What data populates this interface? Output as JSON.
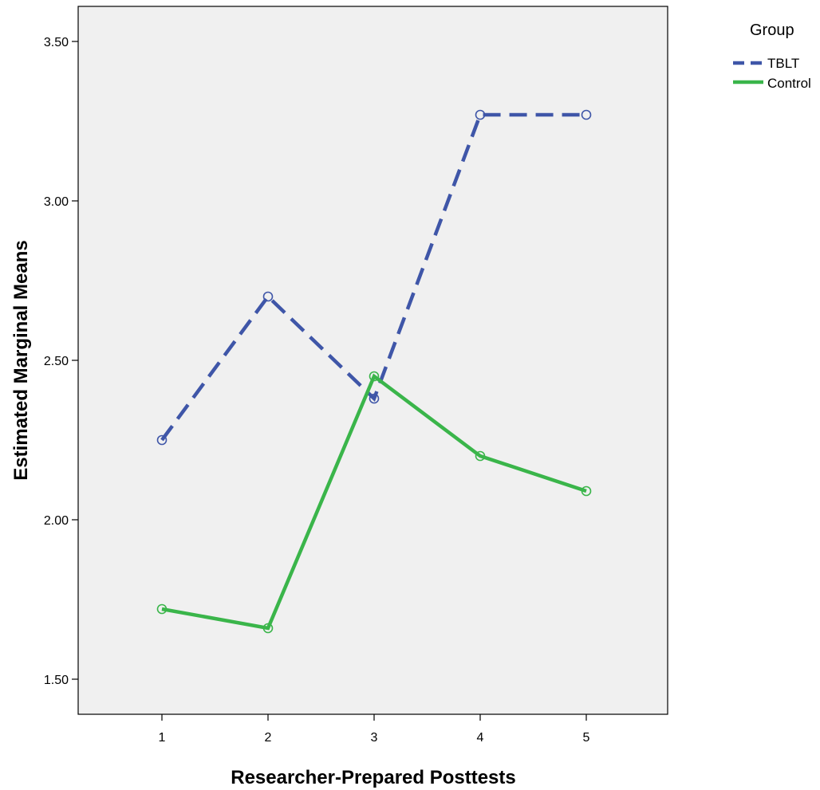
{
  "chart_data": {
    "type": "line",
    "title": "",
    "xlabel": "Researcher-Prepared Posttests",
    "ylabel": "Estimated Marginal Means",
    "categories": [
      "1",
      "2",
      "3",
      "4",
      "5"
    ],
    "yticks": [
      "1.50",
      "2.00",
      "2.50",
      "3.00",
      "3.50"
    ],
    "ylim": [
      1.39,
      3.61
    ],
    "grid": false,
    "legend": {
      "title": "Group",
      "position": "top-right"
    },
    "series": [
      {
        "name": "TBLT",
        "values": [
          2.25,
          2.7,
          2.38,
          3.27,
          3.27
        ],
        "color": "#3f56a8",
        "dash": "dashed",
        "marker": "circle"
      },
      {
        "name": "Control",
        "values": [
          1.72,
          1.66,
          2.45,
          2.2,
          2.09
        ],
        "color": "#3ab54a",
        "dash": "solid",
        "marker": "circle"
      }
    ]
  }
}
